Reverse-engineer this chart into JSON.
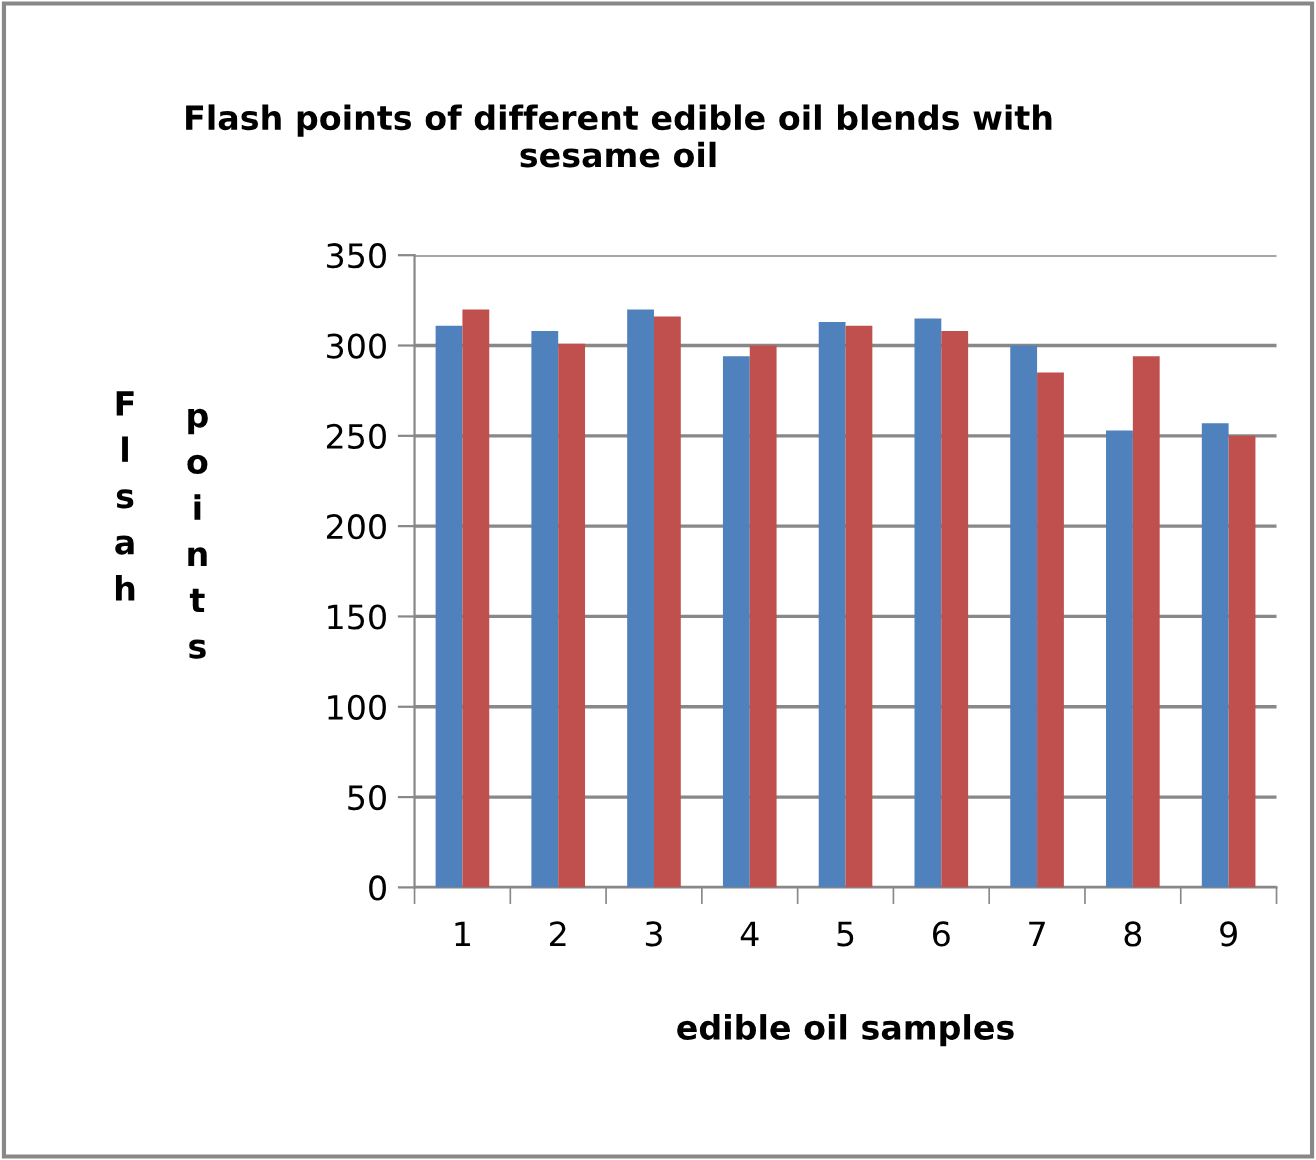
{
  "chart_data": {
    "type": "bar",
    "title": "Flash points of different edible oil blends with\nsesame oil",
    "xlabel": "edible oil samples",
    "ylabel": "Flsah points",
    "categories": [
      "1",
      "2",
      "3",
      "4",
      "5",
      "6",
      "7",
      "8",
      "9"
    ],
    "series": [
      {
        "color": "#4f81bd",
        "values": [
          311,
          308,
          320,
          294,
          313,
          315,
          300,
          253,
          257
        ]
      },
      {
        "color": "#c0504d",
        "values": [
          320,
          301,
          316,
          300,
          311,
          308,
          285,
          294,
          250
        ]
      }
    ],
    "ylim": [
      0,
      350
    ],
    "yticks": [
      0,
      50,
      100,
      150,
      200,
      250,
      300,
      350
    ],
    "grid": "y",
    "legend": false
  }
}
